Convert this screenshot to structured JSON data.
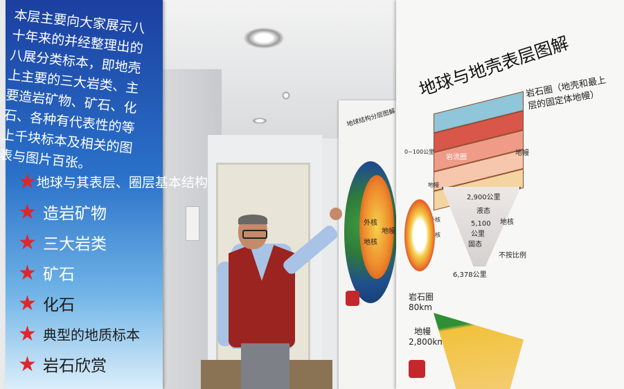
{
  "poster_left": {
    "intro": "本层主要向大家展示八十年来的并经整理出的八展分类标本，即地壳上主要的三大岩类、主要造岩矿物、矿石、化石、各种有代表性的等上千块标本及相关的图表与图片百张。",
    "items": [
      "地球与其表层、圈层基本结构",
      "造岩矿物",
      "三大岩类",
      "矿石",
      "化石",
      "典型的地质标本",
      "岩石欣赏"
    ],
    "star_color": "#e0262b"
  },
  "poster_middle": {
    "title": "地球结构分层图解",
    "labels": [
      "地核",
      "外核",
      "地幔"
    ]
  },
  "poster_right": {
    "title": "地球与地壳表层图解",
    "lithosphere_desc": [
      "岩石圈（地壳和最上",
      "层的固定体地幔）"
    ],
    "labels": {
      "crust": "岩流圈",
      "crust_depth": "0~100公里",
      "mantle": "地幔",
      "mantle_label": "地幔",
      "depth_2900": "2,900公里",
      "liquid": "液态",
      "outer_core": "外核",
      "depth_5100": "5,100公里",
      "inner_core": "内核",
      "core": "地核",
      "solid": "固态",
      "radius": "6,378公里",
      "not_to_scale": "不按比例",
      "lithosphere": "岩石圈",
      "lithosphere_km": "80km",
      "mantle2": "地幔",
      "mantle_km": "2,800km"
    }
  },
  "icons": {
    "stars": "star-icon",
    "ceiling_lamp": "ceiling-lamp-icon"
  }
}
